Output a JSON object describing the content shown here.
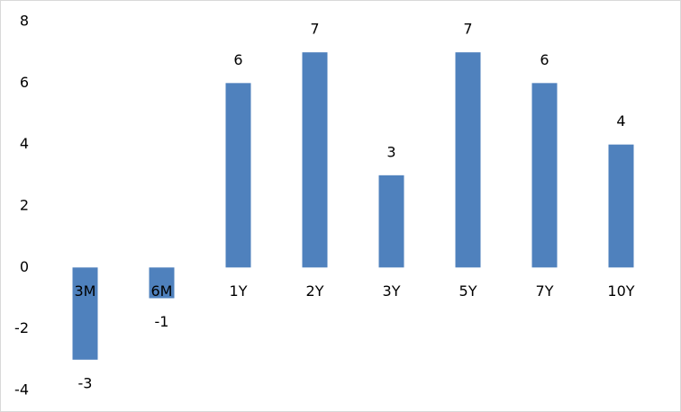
{
  "chart_data": {
    "type": "bar",
    "categories": [
      "3M",
      "6M",
      "1Y",
      "2Y",
      "3Y",
      "5Y",
      "7Y",
      "10Y"
    ],
    "values": [
      -3,
      -1,
      6,
      7,
      3,
      7,
      6,
      4
    ],
    "color": "#4f81bd",
    "ylim": [
      -4,
      8
    ],
    "yticks": [
      -4,
      -2,
      0,
      2,
      4,
      6,
      8
    ],
    "grid": false,
    "data_labels": true
  }
}
